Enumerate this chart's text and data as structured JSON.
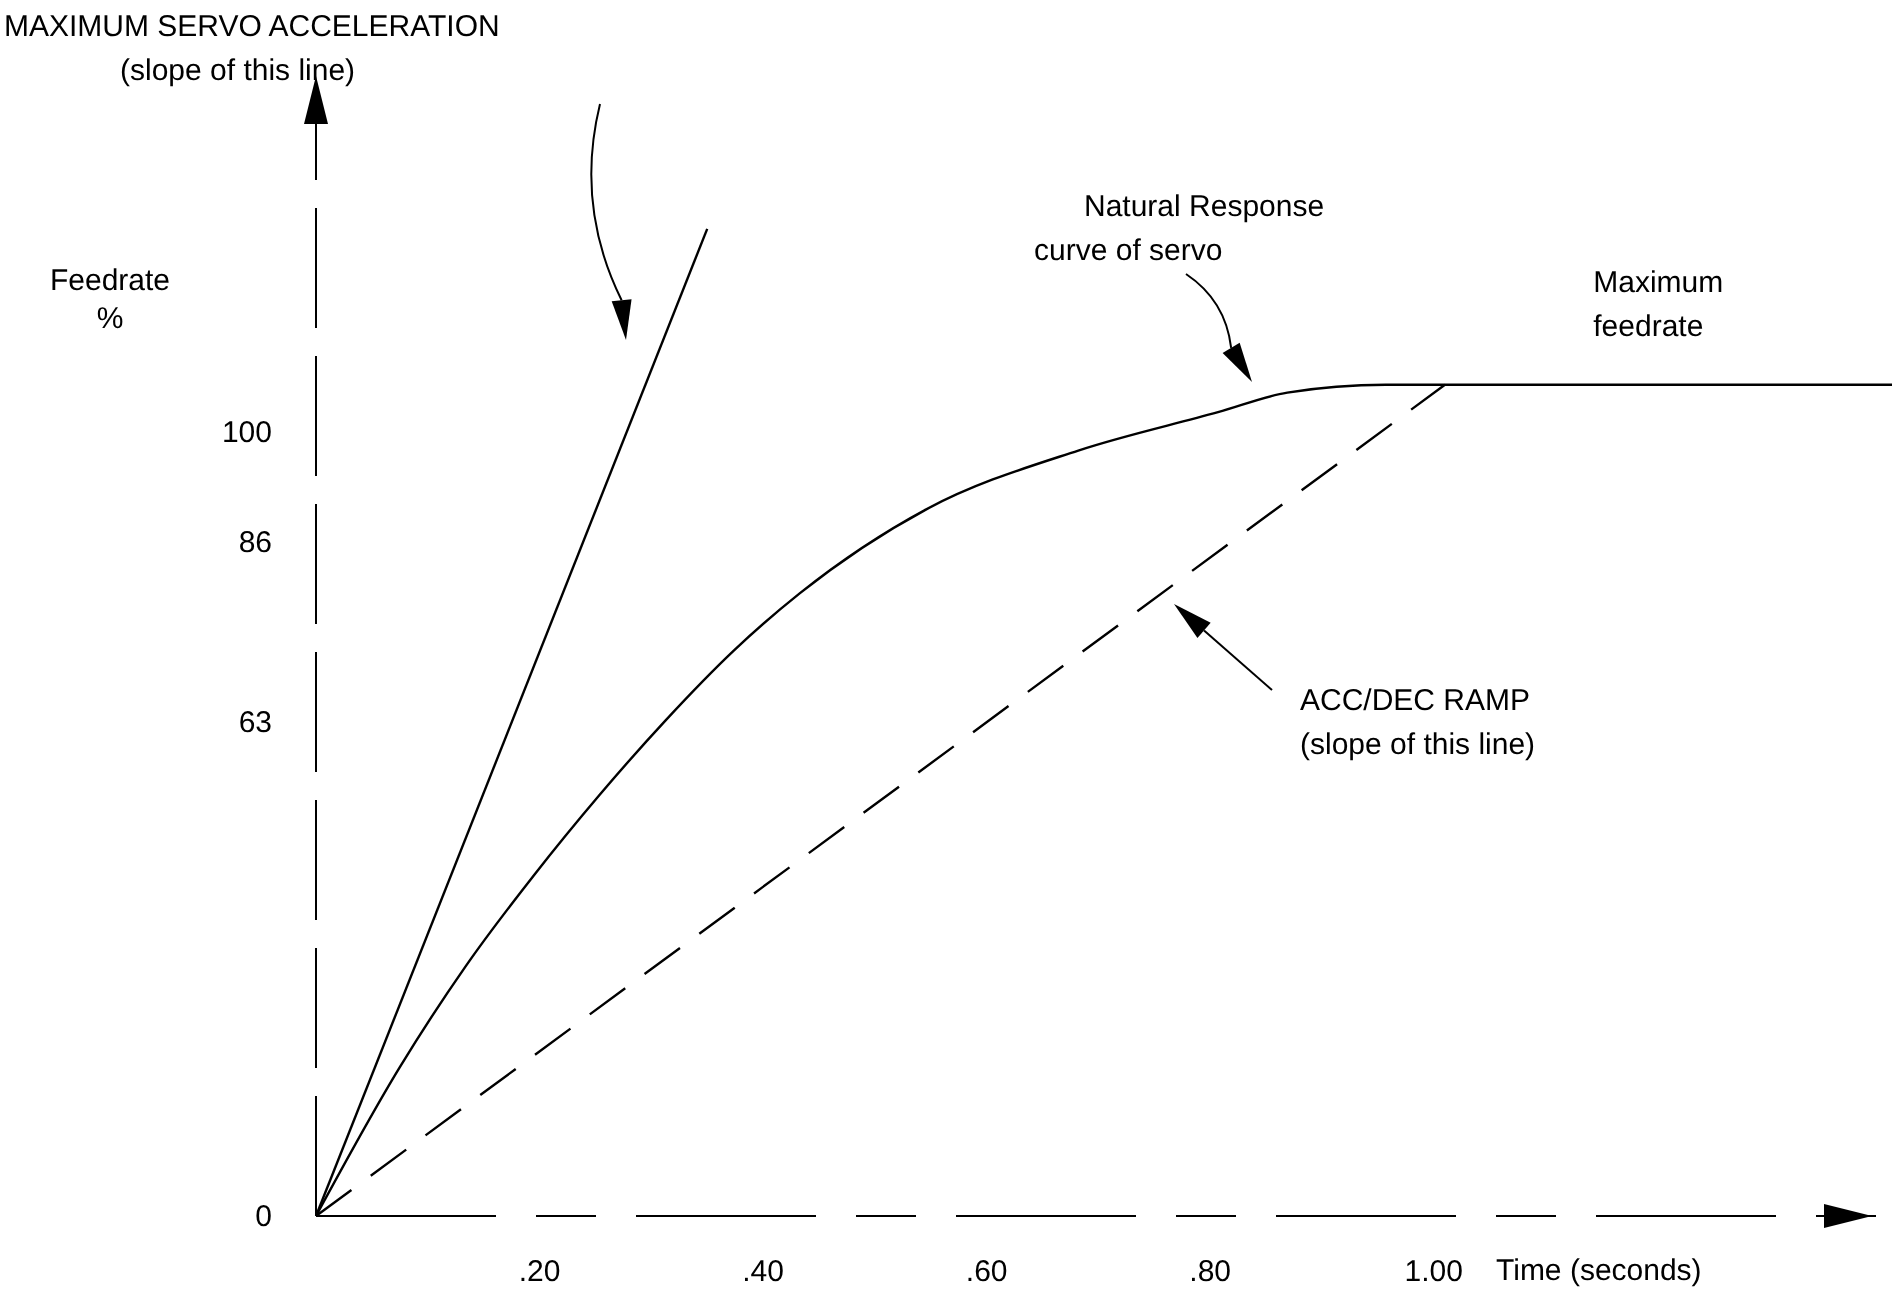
{
  "chart_data": {
    "type": "line",
    "xlabel": "Time (seconds)",
    "ylabel": "Feedrate\n%",
    "xlim": [
      0,
      1.41
    ],
    "ylim": [
      0,
      145
    ],
    "xticks": [
      {
        "value": 0.2,
        "label": ".20"
      },
      {
        "value": 0.4,
        "label": ".40"
      },
      {
        "value": 0.6,
        "label": ".60"
      },
      {
        "value": 0.8,
        "label": ".80"
      },
      {
        "value": 1.0,
        "label": "1.00"
      }
    ],
    "yticks": [
      0,
      63,
      86,
      100
    ],
    "grid": false,
    "series": [
      {
        "color": "#000000",
        "line_style": "solid",
        "x": [
          0,
          0.35
        ],
        "values": [
          0,
          126
        ]
      },
      {
        "color": "#000000",
        "line_style": "solid",
        "x": [
          0,
          0.075,
          0.134,
          0.195,
          0.254,
          0.313,
          0.374,
          0.433,
          0.546,
          0.682,
          0.807,
          0.869,
          0.957,
          1.01,
          1.41
        ],
        "values": [
          0,
          19,
          31.9,
          43.5,
          53.8,
          63.3,
          72.2,
          79.5,
          90.2,
          97.7,
          102.6,
          105.1,
          106.1,
          106.1,
          106.1
        ]
      },
      {
        "color": "#000000",
        "line_style": "dashed",
        "x": [
          0,
          1.01
        ],
        "values": [
          0,
          106.1
        ]
      }
    ],
    "annotations": [
      "MAXIMUM SERVO ACCELERATION\n(slope of this line)",
      "Natural Response\ncurve of servo",
      "ACC/DEC RAMP\n(slope of this line)",
      {
        "text": "Maximum\nfeedrate",
        "x": 1.2,
        "y": 106
      }
    ]
  }
}
